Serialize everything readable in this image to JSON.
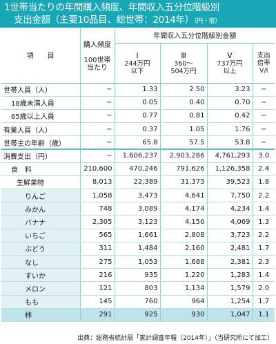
{
  "title": {
    "line1": "1世帯当たりの年間購入頻度、年間収入五分位階級別",
    "line2": "支出金額（主要10品目、総世帯：2014年）",
    "unit": "（円・倍）"
  },
  "header": {
    "item": "項　　目",
    "freq": "購入頻度",
    "freq_sub": "100世帯当たり",
    "group": "年間収入五分位階級別金額",
    "q1_roman": "Ⅰ",
    "q1_range": "244万円以下",
    "q3_roman": "Ⅲ",
    "q3_range": "360～504万円",
    "q5_roman": "Ⅴ",
    "q5_range": "737万円以上",
    "ratio": "支出倍率",
    "ratio_sub": "Ⅴ/Ⅰ"
  },
  "rows": [
    {
      "label": "世帯人員（人）",
      "freq": "−",
      "q1": "1.33",
      "q3": "2.50",
      "q5": "3.23",
      "ratio": "−"
    },
    {
      "label": "18歳未満人員",
      "freq": "−",
      "q1": "0.05",
      "q3": "0.40",
      "q5": "0.70",
      "ratio": "−"
    },
    {
      "label": "65歳以上人員",
      "freq": "−",
      "q1": "0.77",
      "q3": "0.81",
      "q5": "0.42",
      "ratio": "−"
    },
    {
      "label": "有業人員（人）",
      "freq": "−",
      "q1": "0.37",
      "q3": "1.05",
      "q5": "1.76",
      "ratio": "−"
    },
    {
      "label": "世帯主の年齢（歳）",
      "freq": "−",
      "q1": "65.8",
      "q3": "57.5",
      "q5": "53.8",
      "ratio": "−"
    },
    {
      "label": "消費支出（円）",
      "freq": "−",
      "q1": "1,606,237",
      "q3": "2,903,286",
      "q5": "4,761,293",
      "ratio": "3.0"
    },
    {
      "label": "食　料",
      "freq": "210,600",
      "q1": "470,246",
      "q3": "791,626",
      "q5": "1,126,358",
      "ratio": "2.4"
    },
    {
      "label": "生鮮果物",
      "freq": "8,013",
      "q1": "22,389",
      "q3": "31,373",
      "q5": "39,523",
      "ratio": "1.8"
    },
    {
      "label": "りんご",
      "freq": "1,058",
      "q1": "3,473",
      "q3": "4,641",
      "q5": "7,750",
      "ratio": "2.2"
    },
    {
      "label": "みかん",
      "freq": "748",
      "q1": "3,089",
      "q3": "4,174",
      "q5": "4,234",
      "ratio": "1.4"
    },
    {
      "label": "バナナ",
      "freq": "2,305",
      "q1": "3,123",
      "q3": "4,150",
      "q5": "4,069",
      "ratio": "1.3"
    },
    {
      "label": "いちご",
      "freq": "565",
      "q1": "1,661",
      "q3": "2,808",
      "q5": "3,723",
      "ratio": "2.2"
    },
    {
      "label": "ぶどう",
      "freq": "311",
      "q1": "1,484",
      "q3": "2,160",
      "q5": "2,481",
      "ratio": "1.7"
    },
    {
      "label": "なし",
      "freq": "275",
      "q1": "1,053",
      "q3": "1,688",
      "q5": "2,381",
      "ratio": "2.3"
    },
    {
      "label": "すいか",
      "freq": "216",
      "q1": "935",
      "q3": "1,220",
      "q5": "1,283",
      "ratio": "1.4"
    },
    {
      "label": "メロン",
      "freq": "121",
      "q1": "803",
      "q3": "1,134",
      "q5": "1,579",
      "ratio": "2.0"
    },
    {
      "label": "もも",
      "freq": "145",
      "q1": "760",
      "q3": "964",
      "q5": "1,254",
      "ratio": "1.7"
    },
    {
      "label": "柿",
      "freq": "291",
      "q1": "925",
      "q3": "930",
      "q5": "1,047",
      "ratio": "1.1"
    }
  ],
  "footer": "出典：総務省統計局「家計調査年報（2014年）」（当研究所にて加工）"
}
